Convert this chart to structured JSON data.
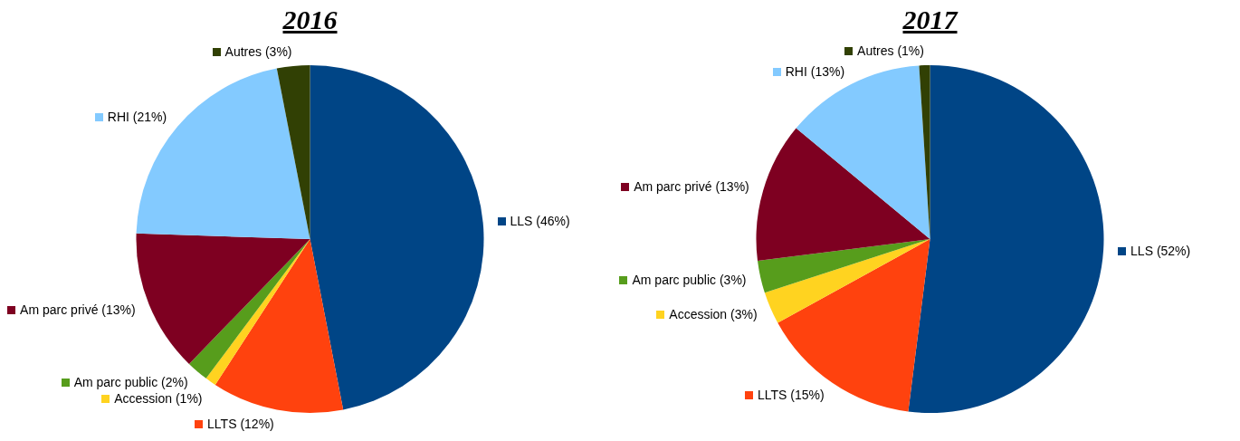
{
  "chart_data": [
    {
      "type": "pie",
      "legend": "top left",
      "title": "2016",
      "categories": [
        "LLS (46%)",
        "LLTS (12%)",
        "Accession (1%)",
        "Am parc public (2%)",
        "Am parc privé (13%)",
        "RHI (21%)",
        "Autres (3%)"
      ],
      "values": [
        46,
        12,
        1,
        2,
        13,
        21,
        3
      ],
      "colors": [
        "#004586",
        "#ff420e",
        "#ffd320",
        "#579d1c",
        "#7e0021",
        "#83caff",
        "#314004"
      ]
    },
    {
      "type": "pie",
      "legend": "top left",
      "title": "2017",
      "categories": [
        "LLS (52%)",
        "LLTS (15%)",
        "Accession (3%)",
        "Am parc public (3%)",
        "Am parc privé (13%)",
        "RHI (13%)",
        "Autres (1%)"
      ],
      "values": [
        52,
        15,
        3,
        3,
        13,
        13,
        1
      ],
      "colors": [
        "#004586",
        "#ff420e",
        "#ffd320",
        "#579d1c",
        "#7e0021",
        "#83caff",
        "#314004"
      ]
    }
  ]
}
